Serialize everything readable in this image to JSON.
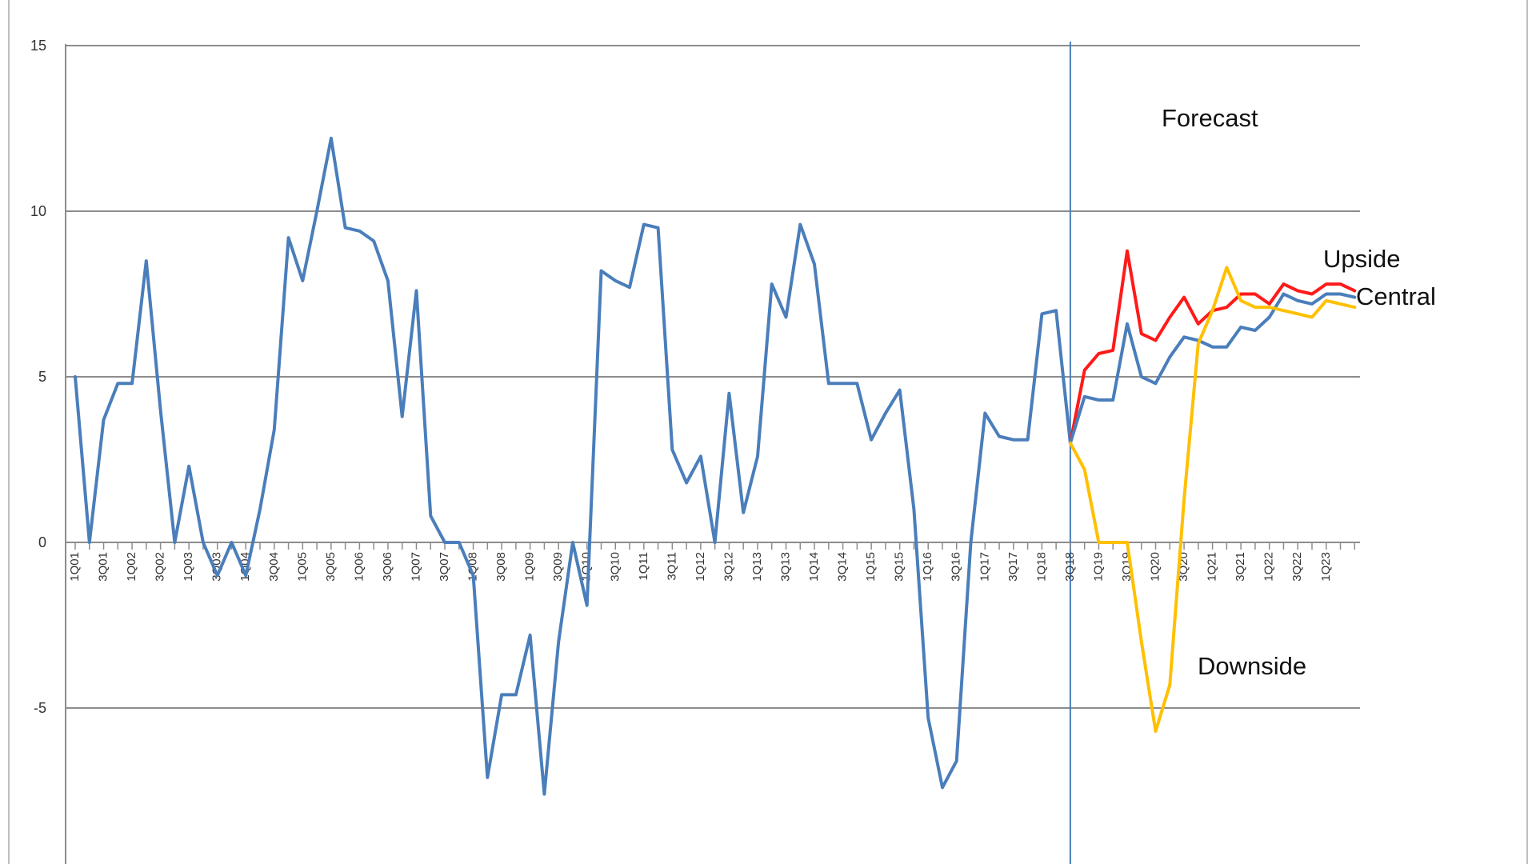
{
  "chart_data": {
    "type": "line",
    "title": "",
    "xlabel": "",
    "ylabel": "",
    "ylim": [
      -10,
      15
    ],
    "yticks": [
      -10,
      -5,
      0,
      5,
      10,
      15
    ],
    "grid": true,
    "x_start": "1Q01",
    "x_tick_labels": [
      "1Q01",
      "3Q01",
      "1Q02",
      "3Q02",
      "1Q03",
      "3Q03",
      "1Q04",
      "3Q04",
      "1Q05",
      "3Q05",
      "1Q06",
      "3Q06",
      "1Q07",
      "3Q07",
      "1Q08",
      "3Q08",
      "1Q09",
      "3Q09",
      "1Q10",
      "3Q10",
      "1Q11",
      "3Q11",
      "1Q12",
      "3Q12",
      "1Q13",
      "3Q13",
      "1Q14",
      "3Q14",
      "1Q15",
      "3Q15",
      "1Q16",
      "3Q16",
      "1Q17",
      "3Q17",
      "1Q18",
      "3Q18",
      "1Q19",
      "3Q19",
      "1Q20",
      "3Q20",
      "1Q21",
      "3Q21",
      "1Q22",
      "3Q22",
      "1Q23"
    ],
    "forecast_start_index": 70,
    "series": [
      {
        "name": "",
        "color": "#4a7ebb",
        "start_index": 0,
        "values": [
          5.0,
          0.0,
          3.7,
          4.8,
          4.8,
          8.5,
          4.0,
          0.0,
          2.3,
          0.0,
          -1.0,
          0.0,
          -1.0,
          1.0,
          3.4,
          9.2,
          7.9,
          10.0,
          12.2,
          9.5,
          9.4,
          9.1,
          7.9,
          3.8,
          7.6,
          0.8,
          0.0,
          0.0,
          -1.0,
          -7.1,
          -4.6,
          -4.6,
          -2.8,
          -7.6,
          -3.0,
          0.0,
          -1.9,
          8.2,
          7.9,
          7.7,
          9.6,
          9.5,
          2.8,
          1.8,
          2.6,
          0.0,
          4.5,
          0.9,
          2.6,
          7.8,
          6.8,
          9.6,
          8.4,
          4.8,
          4.8,
          4.8,
          3.1,
          3.9,
          4.6,
          1.0,
          -5.3,
          -7.4,
          -6.6,
          0.0,
          3.9,
          3.2,
          3.1,
          3.1,
          6.9,
          7.0,
          3.0
        ]
      },
      {
        "name": "Upside",
        "color": "#ff1a1a",
        "start_index": 70,
        "values": [
          3.0,
          5.2,
          5.7,
          5.8,
          8.8,
          6.3,
          6.1,
          6.8,
          7.4,
          6.6,
          7.0,
          7.1,
          7.5,
          7.5,
          7.2,
          7.8,
          7.6,
          7.5,
          7.8,
          7.8,
          7.6
        ]
      },
      {
        "name": "Central",
        "color": "#4a7ebb",
        "start_index": 70,
        "values": [
          3.0,
          4.4,
          4.3,
          4.3,
          6.6,
          5.0,
          4.8,
          5.6,
          6.2,
          6.1,
          5.9,
          5.9,
          6.5,
          6.4,
          6.8,
          7.5,
          7.3,
          7.2,
          7.5,
          7.5,
          7.4
        ]
      },
      {
        "name": "Downside",
        "color": "#ffc000",
        "start_index": 70,
        "values": [
          3.0,
          2.2,
          0.0,
          0.0,
          0.0,
          -3.0,
          -5.7,
          -4.3,
          1.3,
          6.0,
          7.0,
          8.3,
          7.3,
          7.1,
          7.1,
          7.0,
          6.9,
          6.8,
          7.3,
          7.2,
          7.1
        ]
      }
    ],
    "annotations": {
      "forecast": "Forecast",
      "upside": "Upside",
      "central": "Central",
      "downside": "Downside"
    }
  }
}
